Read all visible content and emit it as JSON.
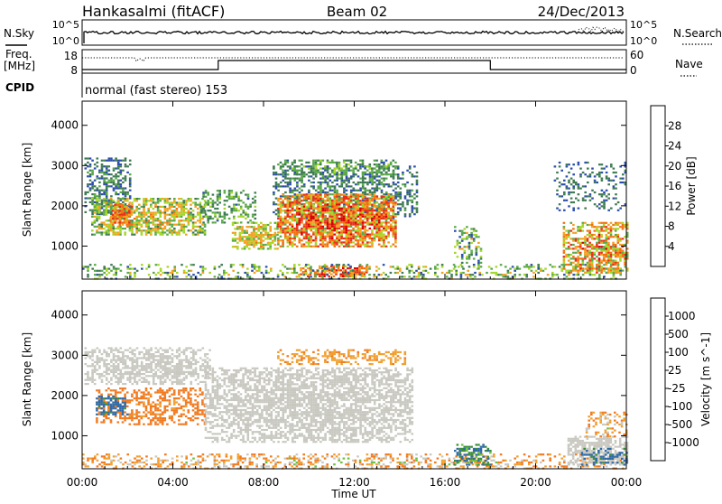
{
  "header": {
    "station": "Hankasalmi (fitACF)",
    "beam": "Beam 02",
    "date": "24/Dec/2013"
  },
  "top_panels": {
    "nsky_label": "N.Sky",
    "nsearch_label": "N.Search",
    "noise_ticks": [
      "10^5",
      "10^0"
    ],
    "freq_label_line1": "Freq.",
    "freq_label_line2": "[MHz]",
    "freq_ticks": [
      "18",
      "8"
    ],
    "nave_label": "Nave",
    "nave_ticks": [
      "60",
      "0"
    ],
    "cpid_label": "CPID",
    "cpid_text": "normal (fast stereo) 153"
  },
  "colors": {
    "power_scale": [
      "#0a14e6",
      "#2c4ea8",
      "#3e7a52",
      "#5aa84a",
      "#a6d62a",
      "#f2a020",
      "#f27010",
      "#e83018",
      "#d80000"
    ],
    "velocity_scale": [
      "#1838c8",
      "#2f6aa6",
      "#3a8e3a",
      "#6cc040",
      "#c8c8c0",
      "#f0a030",
      "#f07a20",
      "#e84a18",
      "#e00000"
    ],
    "background": "#ffffff"
  },
  "chart_data": [
    {
      "type": "heatmap",
      "title": "",
      "xlabel": "",
      "ylabel": "Slant Range [km]",
      "x_ticks": [
        "00:00",
        "04:00",
        "08:00",
        "12:00",
        "16:00",
        "20:00",
        "00:00"
      ],
      "x_range_hours": [
        0,
        24
      ],
      "y_ticks": [
        1000,
        2000,
        3000,
        4000
      ],
      "ylim": [
        180,
        4600
      ],
      "colorbar_label": "Power [dB]",
      "colorbar_ticks": [
        "28",
        "24",
        "20",
        "16",
        "12",
        "8",
        "4"
      ],
      "colorbar_range": [
        0,
        30
      ],
      "blobs": [
        {
          "t0": 0.1,
          "t1": 2.1,
          "r0": 1800,
          "r1": 3200,
          "v0": 4,
          "v1": 12,
          "d": 0.55
        },
        {
          "t0": 0.4,
          "t1": 5.4,
          "r0": 1300,
          "r1": 2200,
          "v0": 8,
          "v1": 22,
          "d": 0.7
        },
        {
          "t0": 1.2,
          "t1": 2.2,
          "r0": 1550,
          "r1": 2050,
          "v0": 16,
          "v1": 28,
          "d": 0.85
        },
        {
          "t0": 5.2,
          "t1": 7.6,
          "r0": 1600,
          "r1": 2400,
          "v0": 6,
          "v1": 16,
          "d": 0.5
        },
        {
          "t0": 6.6,
          "t1": 8.6,
          "r0": 950,
          "r1": 1600,
          "v0": 10,
          "v1": 22,
          "d": 0.75
        },
        {
          "t0": 8.4,
          "t1": 14.8,
          "r0": 1700,
          "r1": 3000,
          "v0": 4,
          "v1": 12,
          "d": 0.55
        },
        {
          "t0": 8.6,
          "t1": 13.8,
          "r0": 1000,
          "r1": 2300,
          "v0": 12,
          "v1": 30,
          "d": 0.9
        },
        {
          "t0": 8.6,
          "t1": 13.8,
          "r0": 2800,
          "r1": 3150,
          "v0": 6,
          "v1": 16,
          "d": 0.55
        },
        {
          "t0": 9.6,
          "t1": 12.6,
          "r0": 250,
          "r1": 520,
          "v0": 16,
          "v1": 30,
          "d": 0.8
        },
        {
          "t0": 0.0,
          "t1": 24.0,
          "r0": 180,
          "r1": 560,
          "v0": 4,
          "v1": 20,
          "d": 0.35
        },
        {
          "t0": 16.4,
          "t1": 17.6,
          "r0": 450,
          "r1": 1500,
          "v0": 4,
          "v1": 20,
          "d": 0.4
        },
        {
          "t0": 21.2,
          "t1": 24.0,
          "r0": 350,
          "r1": 1600,
          "v0": 10,
          "v1": 28,
          "d": 0.75
        },
        {
          "t0": 20.8,
          "t1": 24.0,
          "r0": 1900,
          "r1": 3100,
          "v0": 4,
          "v1": 10,
          "d": 0.3
        }
      ]
    },
    {
      "type": "heatmap",
      "title": "",
      "xlabel": "Time UT",
      "ylabel": "Slant Range [km]",
      "x_ticks": [
        "00:00",
        "04:00",
        "08:00",
        "12:00",
        "16:00",
        "20:00",
        "00:00"
      ],
      "x_range_hours": [
        0,
        24
      ],
      "y_ticks": [
        1000,
        2000,
        3000,
        4000
      ],
      "ylim": [
        180,
        4600
      ],
      "colorbar_label": "Velocity [m s^-1]",
      "colorbar_ticks": [
        "1000",
        "500",
        "100",
        "25",
        "-25",
        "-100",
        "-500",
        "-1000"
      ],
      "colorbar_range": [
        -1000,
        1000
      ],
      "blobs": [
        {
          "t0": 0.1,
          "t1": 5.6,
          "r0": 2300,
          "r1": 3200,
          "v0": -25,
          "v1": 25,
          "d": 0.7
        },
        {
          "t0": 0.6,
          "t1": 5.4,
          "r0": 1300,
          "r1": 2200,
          "v0": -300,
          "v1": -60,
          "d": 0.55
        },
        {
          "t0": 0.6,
          "t1": 2.0,
          "r0": 1550,
          "r1": 2000,
          "v0": 60,
          "v1": 300,
          "d": 0.6
        },
        {
          "t0": 5.4,
          "t1": 14.6,
          "r0": 850,
          "r1": 2700,
          "v0": -25,
          "v1": 25,
          "d": 0.75
        },
        {
          "t0": 8.6,
          "t1": 14.2,
          "r0": 2800,
          "r1": 3150,
          "v0": -120,
          "v1": -40,
          "d": 0.55
        },
        {
          "t0": 0.0,
          "t1": 24.0,
          "r0": 180,
          "r1": 560,
          "v0": -200,
          "v1": 60,
          "d": 0.4
        },
        {
          "t0": 16.4,
          "t1": 18.0,
          "r0": 300,
          "r1": 800,
          "v0": 40,
          "v1": 150,
          "d": 0.6
        },
        {
          "t0": 21.4,
          "t1": 24.0,
          "r0": 300,
          "r1": 1000,
          "v0": -25,
          "v1": 25,
          "d": 0.8
        },
        {
          "t0": 22.2,
          "t1": 24.0,
          "r0": 1000,
          "r1": 1600,
          "v0": -150,
          "v1": 40,
          "d": 0.45
        },
        {
          "t0": 22.0,
          "t1": 24.0,
          "r0": 300,
          "r1": 700,
          "v0": 60,
          "v1": 200,
          "d": 0.45
        }
      ]
    }
  ]
}
